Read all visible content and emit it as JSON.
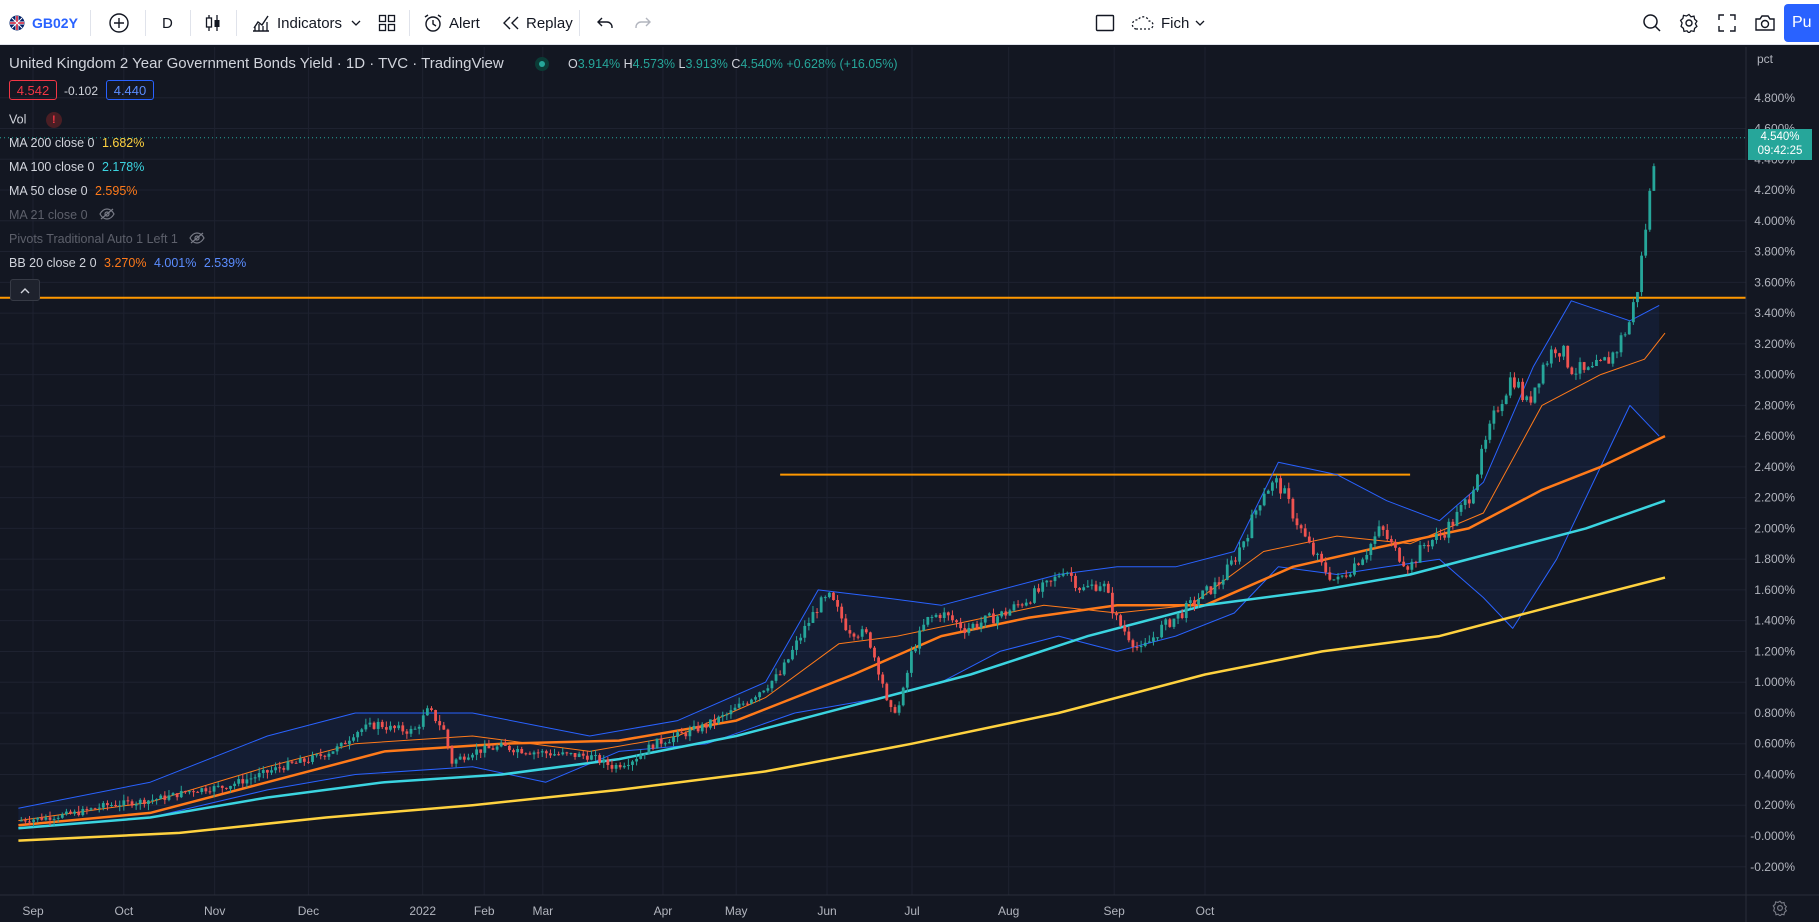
{
  "toolbar": {
    "symbol": "GB02Y",
    "interval": "D",
    "indicators_label": "Indicators",
    "alert_label": "Alert",
    "replay_label": "Replay",
    "layout_label": "Fich",
    "publish_label": "Pu"
  },
  "legend": {
    "title": "United Kingdom 2 Year Government Bonds Yield · 1D · TVC · TradingView",
    "ohlc": {
      "o_key": "O",
      "o": "3.914%",
      "h_key": "H",
      "h": "4.573%",
      "l_key": "L",
      "l": "3.913%",
      "c_key": "C",
      "c": "4.540%",
      "chg": "+0.628% (+16.05%)"
    },
    "bid": "4.542",
    "spread": "-0.102",
    "ask": "4.440",
    "vol_label": "Vol",
    "indicators": [
      {
        "label": "MA 200 close 0",
        "value": "1.682%",
        "color": "#ffd23f"
      },
      {
        "label": "MA 100 close 0",
        "value": "2.178%",
        "color": "#3bd4e0"
      },
      {
        "label": "MA 50 close 0",
        "value": "2.595%",
        "color": "#ff7a1a"
      },
      {
        "label": "MA 21 close 0",
        "value": "",
        "color": "#5d606b"
      },
      {
        "label": "Pivots Traditional Auto 1 Left 1",
        "value": "",
        "color": "#5d606b"
      },
      {
        "label": "BB 20 close 2 0",
        "value1": "3.270%",
        "value2": "4.001%",
        "value3": "2.539%"
      }
    ]
  },
  "price_axis": {
    "unit": "pct",
    "last_price": "4.540%",
    "countdown": "09:42:25"
  },
  "chart_data": {
    "type": "candlestick",
    "title": "United Kingdom 2 Year Government Bonds Yield",
    "interval": "1D",
    "y_ticks": [
      "4.800%",
      "4.600%",
      "4.400%",
      "4.200%",
      "4.000%",
      "3.800%",
      "3.600%",
      "3.400%",
      "3.200%",
      "3.000%",
      "2.800%",
      "2.600%",
      "2.400%",
      "2.200%",
      "2.000%",
      "1.800%",
      "1.600%",
      "1.400%",
      "1.200%",
      "1.000%",
      "0.800%",
      "0.600%",
      "0.400%",
      "0.200%",
      "-0.000%",
      "-0.200%"
    ],
    "x_ticks": [
      "Sep",
      "Oct",
      "Nov",
      "Dec",
      "2022",
      "Feb",
      "Mar",
      "Apr",
      "May",
      "Jun",
      "Jul",
      "Aug",
      "Sep",
      "Oct"
    ],
    "ylim": [
      -0.3,
      4.95
    ],
    "horizontal_lines": [
      {
        "y": 3.5,
        "color": "#ff9800",
        "from": "Aug 2021",
        "to": "Oct 2022"
      },
      {
        "y": 2.35,
        "color": "#ff9800",
        "from": "Apr 2022",
        "to": "Aug 2022"
      }
    ],
    "series": [
      {
        "name": "GB02Y",
        "type": "candles",
        "path": [
          [
            -5,
            0.1
          ],
          [
            5,
            0.12
          ],
          [
            15,
            0.15
          ],
          [
            25,
            0.2
          ],
          [
            35,
            0.22
          ],
          [
            45,
            0.25
          ],
          [
            55,
            0.3
          ],
          [
            65,
            0.32
          ],
          [
            75,
            0.38
          ],
          [
            85,
            0.45
          ],
          [
            95,
            0.5
          ],
          [
            105,
            0.58
          ],
          [
            110,
            0.68
          ],
          [
            118,
            0.73
          ],
          [
            122,
            0.7
          ],
          [
            130,
            0.68
          ],
          [
            135,
            0.82
          ],
          [
            140,
            0.7
          ],
          [
            143,
            0.48
          ],
          [
            150,
            0.55
          ],
          [
            160,
            0.58
          ],
          [
            170,
            0.55
          ],
          [
            180,
            0.53
          ],
          [
            190,
            0.52
          ],
          [
            198,
            0.45
          ],
          [
            205,
            0.5
          ],
          [
            212,
            0.6
          ],
          [
            220,
            0.65
          ],
          [
            230,
            0.72
          ],
          [
            238,
            0.8
          ],
          [
            245,
            0.9
          ],
          [
            255,
            1.05
          ],
          [
            262,
            1.3
          ],
          [
            268,
            1.5
          ],
          [
            272,
            1.55
          ],
          [
            278,
            1.35
          ],
          [
            285,
            1.3
          ],
          [
            290,
            1.0
          ],
          [
            292,
            0.8
          ],
          [
            296,
            0.85
          ],
          [
            300,
            1.2
          ],
          [
            305,
            1.4
          ],
          [
            310,
            1.45
          ],
          [
            318,
            1.35
          ],
          [
            325,
            1.4
          ],
          [
            332,
            1.45
          ],
          [
            340,
            1.55
          ],
          [
            348,
            1.65
          ],
          [
            352,
            1.75
          ],
          [
            358,
            1.6
          ],
          [
            365,
            1.65
          ],
          [
            370,
            1.4
          ],
          [
            378,
            1.2
          ],
          [
            385,
            1.35
          ],
          [
            392,
            1.45
          ],
          [
            398,
            1.55
          ],
          [
            405,
            1.65
          ],
          [
            410,
            1.8
          ],
          [
            415,
            2.0
          ],
          [
            420,
            2.25
          ],
          [
            425,
            2.3
          ],
          [
            430,
            2.1
          ],
          [
            435,
            1.9
          ],
          [
            440,
            1.75
          ],
          [
            445,
            1.65
          ],
          [
            450,
            1.75
          ],
          [
            455,
            1.85
          ],
          [
            460,
            2.0
          ],
          [
            465,
            1.85
          ],
          [
            470,
            1.75
          ],
          [
            475,
            1.9
          ],
          [
            480,
            1.95
          ],
          [
            485,
            2.05
          ],
          [
            490,
            2.2
          ],
          [
            495,
            2.5
          ],
          [
            500,
            2.8
          ],
          [
            505,
            3.0
          ],
          [
            510,
            2.8
          ],
          [
            515,
            3.05
          ],
          [
            520,
            3.2
          ],
          [
            525,
            3.05
          ],
          [
            530,
            3.0
          ],
          [
            535,
            3.05
          ],
          [
            540,
            3.15
          ],
          [
            545,
            3.35
          ],
          [
            548,
            3.6
          ],
          [
            550,
            3.9
          ],
          [
            552,
            4.2
          ],
          [
            554,
            4.54
          ]
        ]
      },
      {
        "name": "BB upper",
        "color": "#2962ff",
        "path": [
          [
            -5,
            0.18
          ],
          [
            40,
            0.35
          ],
          [
            80,
            0.65
          ],
          [
            110,
            0.8
          ],
          [
            150,
            0.8
          ],
          [
            190,
            0.65
          ],
          [
            220,
            0.75
          ],
          [
            250,
            1.0
          ],
          [
            268,
            1.6
          ],
          [
            290,
            1.55
          ],
          [
            310,
            1.5
          ],
          [
            330,
            1.6
          ],
          [
            350,
            1.7
          ],
          [
            370,
            1.75
          ],
          [
            390,
            1.75
          ],
          [
            410,
            1.85
          ],
          [
            425,
            2.43
          ],
          [
            445,
            2.35
          ],
          [
            462,
            2.18
          ],
          [
            480,
            2.05
          ],
          [
            495,
            2.3
          ],
          [
            512,
            3.05
          ],
          [
            525,
            3.48
          ],
          [
            545,
            3.35
          ],
          [
            555,
            3.45
          ]
        ]
      },
      {
        "name": "BB lower",
        "color": "#2962ff",
        "path": [
          [
            -5,
            0.05
          ],
          [
            40,
            0.12
          ],
          [
            80,
            0.3
          ],
          [
            110,
            0.4
          ],
          [
            150,
            0.45
          ],
          [
            175,
            0.35
          ],
          [
            200,
            0.55
          ],
          [
            230,
            0.6
          ],
          [
            260,
            0.8
          ],
          [
            290,
            0.9
          ],
          [
            310,
            1.0
          ],
          [
            330,
            1.2
          ],
          [
            350,
            1.3
          ],
          [
            370,
            1.2
          ],
          [
            390,
            1.3
          ],
          [
            410,
            1.45
          ],
          [
            425,
            1.75
          ],
          [
            445,
            1.7
          ],
          [
            462,
            1.75
          ],
          [
            480,
            1.8
          ],
          [
            495,
            1.55
          ],
          [
            505,
            1.35
          ],
          [
            520,
            1.8
          ],
          [
            535,
            2.4
          ],
          [
            545,
            2.8
          ],
          [
            555,
            2.6
          ]
        ]
      },
      {
        "name": "BB basis",
        "color": "#ff7a1a",
        "path": [
          [
            -5,
            0.1
          ],
          [
            40,
            0.22
          ],
          [
            80,
            0.45
          ],
          [
            110,
            0.6
          ],
          [
            150,
            0.65
          ],
          [
            190,
            0.55
          ],
          [
            220,
            0.65
          ],
          [
            250,
            0.9
          ],
          [
            275,
            1.25
          ],
          [
            295,
            1.3
          ],
          [
            320,
            1.4
          ],
          [
            345,
            1.5
          ],
          [
            370,
            1.45
          ],
          [
            395,
            1.5
          ],
          [
            420,
            1.85
          ],
          [
            445,
            1.95
          ],
          [
            470,
            1.9
          ],
          [
            495,
            2.1
          ],
          [
            515,
            2.8
          ],
          [
            535,
            3.0
          ],
          [
            550,
            3.1
          ],
          [
            557,
            3.27
          ]
        ]
      },
      {
        "name": "MA 50",
        "color": "#ff7a1a",
        "path": [
          [
            -5,
            0.07
          ],
          [
            40,
            0.15
          ],
          [
            80,
            0.35
          ],
          [
            120,
            0.55
          ],
          [
            160,
            0.6
          ],
          [
            200,
            0.62
          ],
          [
            240,
            0.75
          ],
          [
            280,
            1.05
          ],
          [
            310,
            1.3
          ],
          [
            340,
            1.42
          ],
          [
            370,
            1.5
          ],
          [
            400,
            1.5
          ],
          [
            430,
            1.75
          ],
          [
            460,
            1.88
          ],
          [
            490,
            2.0
          ],
          [
            515,
            2.25
          ],
          [
            535,
            2.4
          ],
          [
            557,
            2.6
          ]
        ]
      },
      {
        "name": "MA 100",
        "color": "#3bd4e0",
        "path": [
          [
            -5,
            0.05
          ],
          [
            40,
            0.12
          ],
          [
            80,
            0.25
          ],
          [
            120,
            0.35
          ],
          [
            160,
            0.4
          ],
          [
            200,
            0.5
          ],
          [
            240,
            0.65
          ],
          [
            280,
            0.85
          ],
          [
            320,
            1.05
          ],
          [
            360,
            1.3
          ],
          [
            400,
            1.5
          ],
          [
            440,
            1.6
          ],
          [
            470,
            1.7
          ],
          [
            500,
            1.85
          ],
          [
            530,
            2.0
          ],
          [
            557,
            2.18
          ]
        ]
      },
      {
        "name": "MA 200",
        "color": "#ffd23f",
        "path": [
          [
            -5,
            -0.03
          ],
          [
            50,
            0.02
          ],
          [
            100,
            0.12
          ],
          [
            150,
            0.2
          ],
          [
            200,
            0.3
          ],
          [
            250,
            0.42
          ],
          [
            300,
            0.6
          ],
          [
            350,
            0.8
          ],
          [
            400,
            1.05
          ],
          [
            440,
            1.2
          ],
          [
            480,
            1.3
          ],
          [
            520,
            1.5
          ],
          [
            557,
            1.68
          ]
        ]
      }
    ]
  }
}
